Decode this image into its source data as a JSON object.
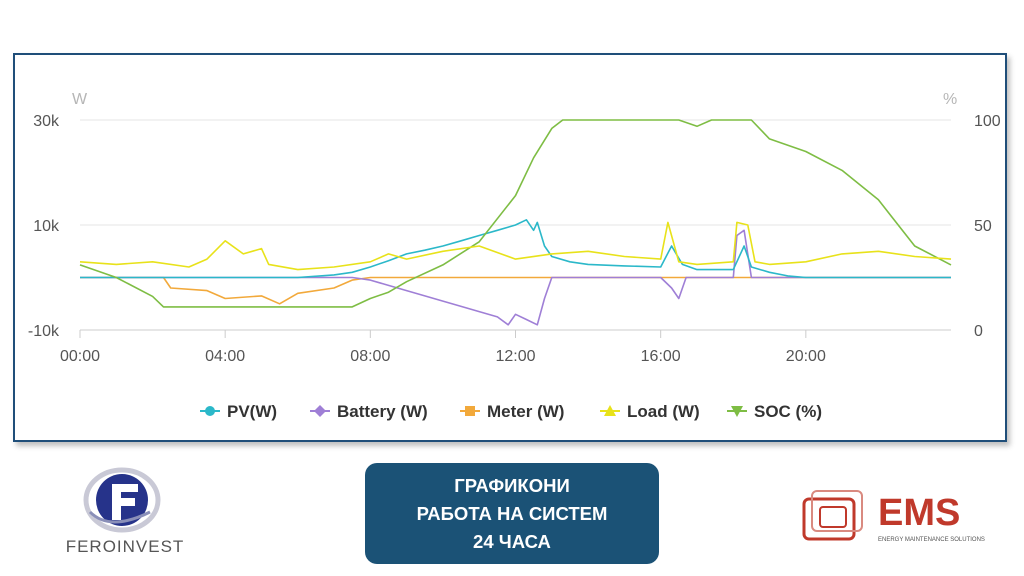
{
  "chart_data": {
    "type": "line",
    "y_left_unit": "W",
    "y_right_unit": "%",
    "y_left_ticks": [
      "30k",
      "10k",
      "-10k"
    ],
    "y_right_ticks": [
      "100",
      "50",
      "0"
    ],
    "x_ticks": [
      "00:00",
      "04:00",
      "08:00",
      "12:00",
      "16:00",
      "20:00"
    ],
    "xlim": [
      0,
      24
    ],
    "ylim_left": [
      -10000,
      30000
    ],
    "ylim_right": [
      0,
      100
    ],
    "grid": true,
    "legend_position": "bottom",
    "series": [
      {
        "name": "PV(W)",
        "axis": "left",
        "color": "#2bb8c9",
        "marker": "circle",
        "points": [
          [
            0,
            0
          ],
          [
            6,
            0
          ],
          [
            7,
            500
          ],
          [
            7.5,
            1000
          ],
          [
            8,
            2000
          ],
          [
            8.5,
            3200
          ],
          [
            9,
            4500
          ],
          [
            9.5,
            5200
          ],
          [
            10,
            6000
          ],
          [
            10.5,
            7000
          ],
          [
            11,
            8000
          ],
          [
            11.5,
            9000
          ],
          [
            12,
            10000
          ],
          [
            12.3,
            11000
          ],
          [
            12.5,
            9000
          ],
          [
            12.6,
            10500
          ],
          [
            12.8,
            6000
          ],
          [
            13,
            4000
          ],
          [
            13.5,
            3000
          ],
          [
            14,
            2500
          ],
          [
            15,
            2200
          ],
          [
            16,
            2000
          ],
          [
            16.3,
            6000
          ],
          [
            16.6,
            2500
          ],
          [
            17,
            1500
          ],
          [
            18,
            1500
          ],
          [
            18.3,
            6000
          ],
          [
            18.5,
            2000
          ],
          [
            19,
            1000
          ],
          [
            19.5,
            300
          ],
          [
            20,
            0
          ],
          [
            24,
            0
          ]
        ]
      },
      {
        "name": "Battery (W)",
        "axis": "left",
        "color": "#9f7fd6",
        "marker": "diamond",
        "points": [
          [
            0,
            0
          ],
          [
            2.3,
            0
          ],
          [
            7.5,
            0
          ],
          [
            8,
            -500
          ],
          [
            8.5,
            -1500
          ],
          [
            9,
            -2500
          ],
          [
            9.5,
            -3500
          ],
          [
            10,
            -4500
          ],
          [
            10.5,
            -5500
          ],
          [
            11,
            -6500
          ],
          [
            11.5,
            -7500
          ],
          [
            11.8,
            -9000
          ],
          [
            12,
            -7000
          ],
          [
            12.3,
            -8000
          ],
          [
            12.6,
            -9000
          ],
          [
            12.8,
            -4000
          ],
          [
            13,
            0
          ],
          [
            16,
            0
          ],
          [
            16.3,
            -2000
          ],
          [
            16.5,
            -4000
          ],
          [
            16.7,
            0
          ],
          [
            18,
            0
          ],
          [
            18.1,
            8000
          ],
          [
            18.3,
            9000
          ],
          [
            18.5,
            0
          ],
          [
            20,
            0
          ],
          [
            24,
            0
          ]
        ]
      },
      {
        "name": "Meter (W)",
        "axis": "left",
        "color": "#f2a93b",
        "marker": "square",
        "points": [
          [
            0,
            0
          ],
          [
            2.3,
            0
          ],
          [
            2.5,
            -2000
          ],
          [
            3.5,
            -2500
          ],
          [
            4,
            -4000
          ],
          [
            5,
            -3500
          ],
          [
            5.5,
            -5000
          ],
          [
            6,
            -3000
          ],
          [
            7,
            -2000
          ],
          [
            7.5,
            -500
          ],
          [
            8,
            0
          ],
          [
            24,
            0
          ]
        ]
      },
      {
        "name": "Load (W)",
        "axis": "left",
        "color": "#e8e21a",
        "marker": "triangle-up",
        "points": [
          [
            0,
            3000
          ],
          [
            1,
            2500
          ],
          [
            2,
            3000
          ],
          [
            3,
            2000
          ],
          [
            3.5,
            3500
          ],
          [
            4,
            7000
          ],
          [
            4.5,
            4500
          ],
          [
            5,
            5500
          ],
          [
            5.2,
            2500
          ],
          [
            6,
            1500
          ],
          [
            7,
            2000
          ],
          [
            8,
            3000
          ],
          [
            8.5,
            4500
          ],
          [
            9,
            3500
          ],
          [
            10,
            5000
          ],
          [
            11,
            6000
          ],
          [
            12,
            3500
          ],
          [
            13,
            4500
          ],
          [
            14,
            5000
          ],
          [
            15,
            4000
          ],
          [
            16,
            3500
          ],
          [
            16.2,
            10500
          ],
          [
            16.5,
            3000
          ],
          [
            17,
            2500
          ],
          [
            18,
            3000
          ],
          [
            18.1,
            10500
          ],
          [
            18.4,
            10000
          ],
          [
            18.6,
            3000
          ],
          [
            19,
            2500
          ],
          [
            20,
            3000
          ],
          [
            21,
            4500
          ],
          [
            22,
            5000
          ],
          [
            23,
            4000
          ],
          [
            24,
            3500
          ]
        ]
      },
      {
        "name": "SOC (%)",
        "axis": "right",
        "color": "#7ebd44",
        "marker": "triangle-down",
        "points": [
          [
            0,
            31
          ],
          [
            1,
            25
          ],
          [
            2,
            16
          ],
          [
            2.3,
            11
          ],
          [
            7.5,
            11
          ],
          [
            8,
            15
          ],
          [
            8.5,
            18
          ],
          [
            9,
            23
          ],
          [
            10,
            31
          ],
          [
            11,
            42
          ],
          [
            12,
            64
          ],
          [
            12.5,
            82
          ],
          [
            13,
            96
          ],
          [
            13.3,
            100
          ],
          [
            16.5,
            100
          ],
          [
            17,
            97
          ],
          [
            17.4,
            100
          ],
          [
            18.5,
            100
          ],
          [
            19,
            91
          ],
          [
            20,
            85
          ],
          [
            21,
            76
          ],
          [
            22,
            62
          ],
          [
            23,
            40
          ],
          [
            24,
            31
          ]
        ]
      }
    ]
  },
  "title_box": {
    "line1": "ГРАФИКОНИ",
    "line2": "РАБОТА НА СИСТЕМ",
    "line3": "24 ЧАСА"
  },
  "logos": {
    "left_text": "FEROINVEST",
    "right_text": "EMS",
    "right_tagline": "ENERGY MAINTENANCE SOLUTIONS"
  }
}
